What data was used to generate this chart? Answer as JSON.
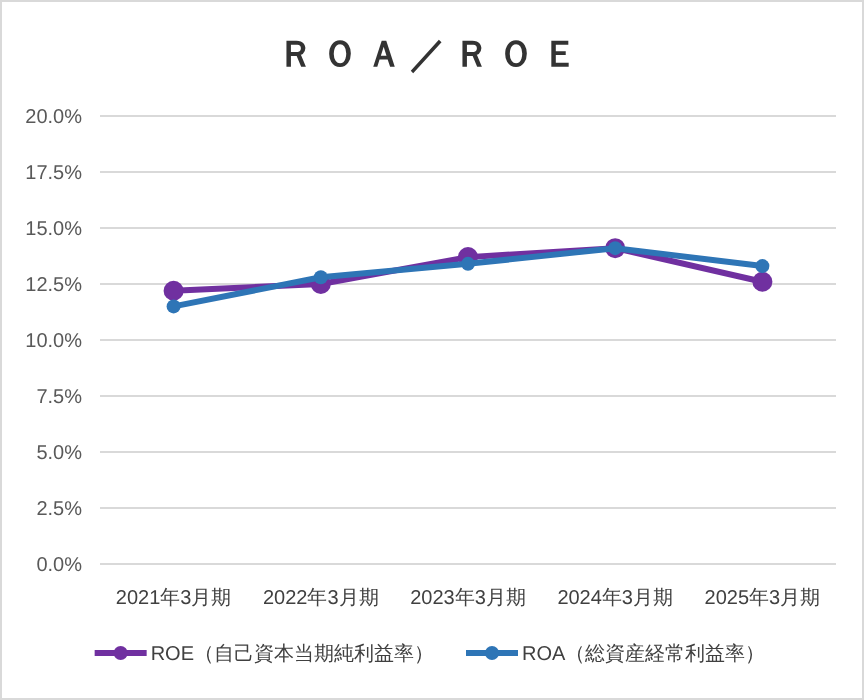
{
  "chart_data": {
    "type": "line",
    "title": "ＲＯＡ／ＲＯＥ",
    "categories": [
      "2021年3月期",
      "2022年3月期",
      "2023年3月期",
      "2024年3月期",
      "2025年3月期"
    ],
    "series": [
      {
        "name": "ROE（自己資本当期純利益率）",
        "color": "#7030a0",
        "values": [
          12.2,
          12.5,
          13.7,
          14.1,
          12.6
        ]
      },
      {
        "name": "ROA（総資産経常利益率）",
        "color": "#2e75b6",
        "values": [
          11.5,
          12.8,
          13.4,
          14.1,
          13.3
        ]
      }
    ],
    "ylim": [
      0,
      20
    ],
    "yticks": [
      {
        "value": 0,
        "label": "0.0%"
      },
      {
        "value": 2.5,
        "label": "2.5%"
      },
      {
        "value": 5,
        "label": "5.0%"
      },
      {
        "value": 7.5,
        "label": "7.5%"
      },
      {
        "value": 10,
        "label": "10.0%"
      },
      {
        "value": 12.5,
        "label": "12.5%"
      },
      {
        "value": 15,
        "label": "15.0%"
      },
      {
        "value": 17.5,
        "label": "17.5%"
      },
      {
        "value": 20,
        "label": "20.0%"
      }
    ],
    "grid": "y",
    "marker": "circle",
    "line_style": "solid",
    "legend": "bottom"
  }
}
